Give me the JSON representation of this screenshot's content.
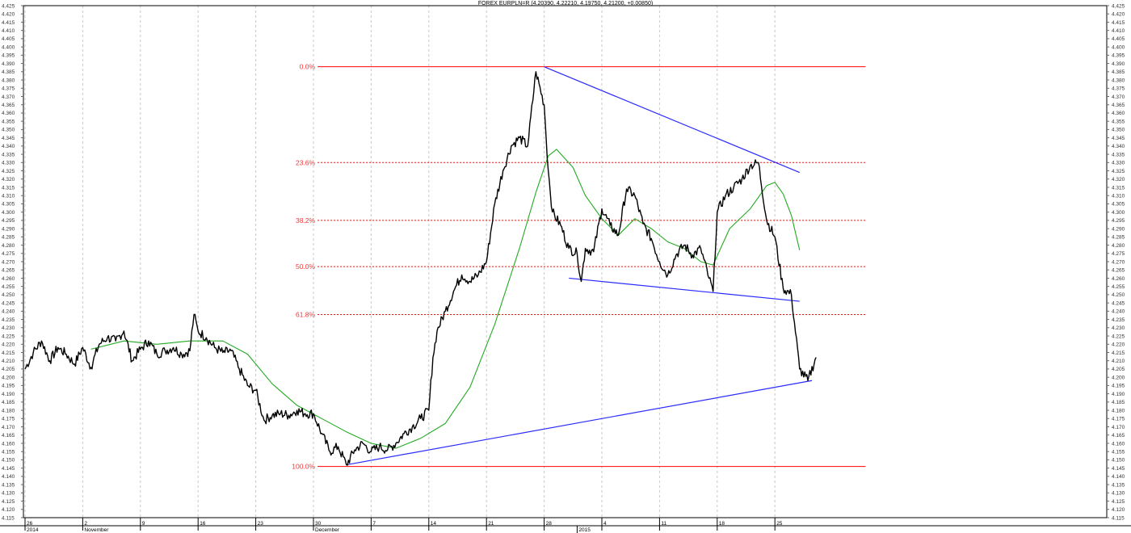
{
  "chart_data": {
    "type": "line",
    "title": "FOREX EURPLN=R (4.20390, 4.22210, 4.19750, 4.21200, +0.00850)",
    "ylim": [
      4.115,
      4.425
    ],
    "ytick_step": 0.005,
    "grid": true,
    "colors": {
      "price": "#000000",
      "ma": "#22aa22",
      "trend": "#2b2bff",
      "fib": "#ff0000",
      "grid": "#c8c8c8"
    },
    "x_axis": {
      "labels": [
        {
          "day": 0,
          "top": "26",
          "bottom": "2014"
        },
        {
          "day": 7,
          "top": "2",
          "bottom": "November"
        },
        {
          "day": 14,
          "top": "9",
          "bottom": ""
        },
        {
          "day": 21,
          "top": "16",
          "bottom": ""
        },
        {
          "day": 28,
          "top": "23",
          "bottom": ""
        },
        {
          "day": 35,
          "top": "30",
          "bottom": "December"
        },
        {
          "day": 42,
          "top": "7",
          "bottom": ""
        },
        {
          "day": 49,
          "top": "14",
          "bottom": ""
        },
        {
          "day": 56,
          "top": "21",
          "bottom": ""
        },
        {
          "day": 63,
          "top": "28",
          "bottom": ""
        },
        {
          "day": 67,
          "top": "",
          "bottom": "2015"
        },
        {
          "day": 70,
          "top": "4",
          "bottom": ""
        },
        {
          "day": 77,
          "top": "11",
          "bottom": ""
        },
        {
          "day": 84,
          "top": "18",
          "bottom": ""
        },
        {
          "day": 91,
          "top": "25",
          "bottom": ""
        }
      ]
    },
    "series": [
      {
        "kind": "price",
        "points": [
          [
            0,
            4.205
          ],
          [
            1,
            4.215
          ],
          [
            2,
            4.222
          ],
          [
            3,
            4.21
          ],
          [
            4,
            4.218
          ],
          [
            5,
            4.214
          ],
          [
            6,
            4.208
          ],
          [
            7,
            4.218
          ],
          [
            8,
            4.206
          ],
          [
            9,
            4.22
          ],
          [
            10,
            4.224
          ],
          [
            11,
            4.222
          ],
          [
            12,
            4.228
          ],
          [
            13,
            4.21
          ],
          [
            14,
            4.217
          ],
          [
            15,
            4.222
          ],
          [
            16,
            4.214
          ],
          [
            17,
            4.216
          ],
          [
            18,
            4.218
          ],
          [
            19,
            4.214
          ],
          [
            20,
            4.216
          ],
          [
            20.5,
            4.238
          ],
          [
            21,
            4.228
          ],
          [
            22,
            4.224
          ],
          [
            23,
            4.218
          ],
          [
            24,
            4.215
          ],
          [
            25,
            4.216
          ],
          [
            26,
            4.205
          ],
          [
            27,
            4.195
          ],
          [
            28,
            4.192
          ],
          [
            29,
            4.174
          ],
          [
            30,
            4.177
          ],
          [
            31,
            4.178
          ],
          [
            32,
            4.177
          ],
          [
            33,
            4.18
          ],
          [
            34,
            4.178
          ],
          [
            35,
            4.178
          ],
          [
            36,
            4.166
          ],
          [
            37,
            4.155
          ],
          [
            38,
            4.158
          ],
          [
            39,
            4.147
          ],
          [
            40,
            4.156
          ],
          [
            41,
            4.16
          ],
          [
            42,
            4.155
          ],
          [
            43,
            4.158
          ],
          [
            44,
            4.156
          ],
          [
            45,
            4.16
          ],
          [
            46,
            4.166
          ],
          [
            47,
            4.17
          ],
          [
            48,
            4.175
          ],
          [
            49,
            4.18
          ],
          [
            49.5,
            4.212
          ],
          [
            50,
            4.228
          ],
          [
            51,
            4.24
          ],
          [
            52,
            4.252
          ],
          [
            53,
            4.262
          ],
          [
            54,
            4.258
          ],
          [
            55,
            4.262
          ],
          [
            56,
            4.27
          ],
          [
            57,
            4.305
          ],
          [
            58,
            4.325
          ],
          [
            59,
            4.34
          ],
          [
            60,
            4.345
          ],
          [
            61,
            4.34
          ],
          [
            62,
            4.385
          ],
          [
            63,
            4.365
          ],
          [
            63.5,
            4.325
          ],
          [
            64,
            4.3
          ],
          [
            65,
            4.292
          ],
          [
            66,
            4.278
          ],
          [
            67,
            4.275
          ],
          [
            67.5,
            4.258
          ],
          [
            68,
            4.278
          ],
          [
            69,
            4.276
          ],
          [
            70,
            4.302
          ],
          [
            71,
            4.292
          ],
          [
            72,
            4.286
          ],
          [
            73,
            4.314
          ],
          [
            74,
            4.31
          ],
          [
            75,
            4.293
          ],
          [
            76,
            4.284
          ],
          [
            77,
            4.27
          ],
          [
            78,
            4.262
          ],
          [
            79,
            4.274
          ],
          [
            80,
            4.28
          ],
          [
            81,
            4.274
          ],
          [
            82,
            4.278
          ],
          [
            83,
            4.26
          ],
          [
            83.5,
            4.252
          ],
          [
            84,
            4.3
          ],
          [
            85,
            4.31
          ],
          [
            86,
            4.315
          ],
          [
            87,
            4.32
          ],
          [
            88,
            4.328
          ],
          [
            89,
            4.33
          ],
          [
            90,
            4.295
          ],
          [
            91,
            4.285
          ],
          [
            92,
            4.254
          ],
          [
            93,
            4.25
          ],
          [
            94,
            4.205
          ],
          [
            95,
            4.198
          ],
          [
            96,
            4.212
          ]
        ]
      },
      {
        "kind": "moving-average",
        "points": [
          [
            8,
            4.217
          ],
          [
            12,
            4.222
          ],
          [
            16,
            4.22
          ],
          [
            20,
            4.222
          ],
          [
            24,
            4.222
          ],
          [
            27,
            4.214
          ],
          [
            30,
            4.196
          ],
          [
            33,
            4.183
          ],
          [
            36,
            4.175
          ],
          [
            39,
            4.167
          ],
          [
            42,
            4.16
          ],
          [
            45,
            4.157
          ],
          [
            48,
            4.163
          ],
          [
            51,
            4.172
          ],
          [
            54,
            4.194
          ],
          [
            57,
            4.232
          ],
          [
            60,
            4.278
          ],
          [
            62,
            4.312
          ],
          [
            63.5,
            4.334
          ],
          [
            64.5,
            4.338
          ],
          [
            66.5,
            4.327
          ],
          [
            68,
            4.31
          ],
          [
            70,
            4.296
          ],
          [
            72,
            4.286
          ],
          [
            74,
            4.296
          ],
          [
            76,
            4.29
          ],
          [
            78,
            4.282
          ],
          [
            80,
            4.278
          ],
          [
            82,
            4.27
          ],
          [
            83.5,
            4.268
          ],
          [
            85.5,
            4.29
          ],
          [
            88,
            4.302
          ],
          [
            90,
            4.316
          ],
          [
            91,
            4.318
          ],
          [
            92,
            4.311
          ],
          [
            93,
            4.298
          ],
          [
            94,
            4.277
          ]
        ]
      }
    ],
    "trendlines": [
      {
        "from": [
          63,
          4.388
        ],
        "to": [
          94,
          4.324
        ]
      },
      {
        "from": [
          66,
          4.26
        ],
        "to": [
          94,
          4.246
        ]
      },
      {
        "from": [
          39,
          4.147
        ],
        "to": [
          95.5,
          4.198
        ]
      }
    ],
    "fibonacci": [
      {
        "label": "0.0%",
        "value": 4.388,
        "solid": true
      },
      {
        "label": "23.6%",
        "value": 4.33,
        "solid": false
      },
      {
        "label": "38.2%",
        "value": 4.295,
        "solid": false
      },
      {
        "label": "50.0%",
        "value": 4.267,
        "solid": false
      },
      {
        "label": "61.8%",
        "value": 4.238,
        "solid": false
      },
      {
        "label": "100.0%",
        "value": 4.146,
        "solid": true
      }
    ],
    "fib_x_range": [
      35.5,
      102
    ]
  }
}
